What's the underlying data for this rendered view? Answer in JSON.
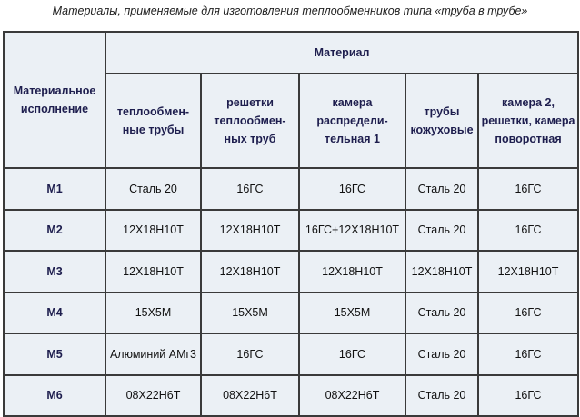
{
  "caption": "Материалы, применяемые для изготовления теплообменников типа «труба в трубе»",
  "table": {
    "corner": "Материальное исполнение",
    "group": "Материал",
    "columns": [
      "теплообмен-ные трубы",
      "решетки теплообмен-ных труб",
      "камера распредели-тельная 1",
      "трубы кожуховые",
      "камера 2, решетки, камера поворотная"
    ],
    "rows": [
      {
        "label": "М1",
        "cells": [
          "Сталь 20",
          "16ГС",
          "16ГС",
          "Сталь 20",
          "16ГС"
        ]
      },
      {
        "label": "М2",
        "cells": [
          "12Х18Н10Т",
          "12Х18Н10Т",
          "16ГС+12Х18Н10Т",
          "Сталь 20",
          "16ГС"
        ]
      },
      {
        "label": "М3",
        "cells": [
          "12Х18Н10Т",
          "12Х18Н10Т",
          "12Х18Н10Т",
          "12Х18Н10Т",
          "12Х18Н10Т"
        ]
      },
      {
        "label": "М4",
        "cells": [
          "15Х5М",
          "15Х5М",
          "15Х5М",
          "Сталь 20",
          "16ГС"
        ]
      },
      {
        "label": "М5",
        "cells": [
          "Алюминий АМг3",
          "16ГС",
          "16ГС",
          "Сталь 20",
          "16ГС"
        ]
      },
      {
        "label": "М6",
        "cells": [
          "08Х22Н6Т",
          "08Х22Н6Т",
          "08Х22Н6Т",
          "Сталь 20",
          "16ГС"
        ]
      }
    ]
  }
}
